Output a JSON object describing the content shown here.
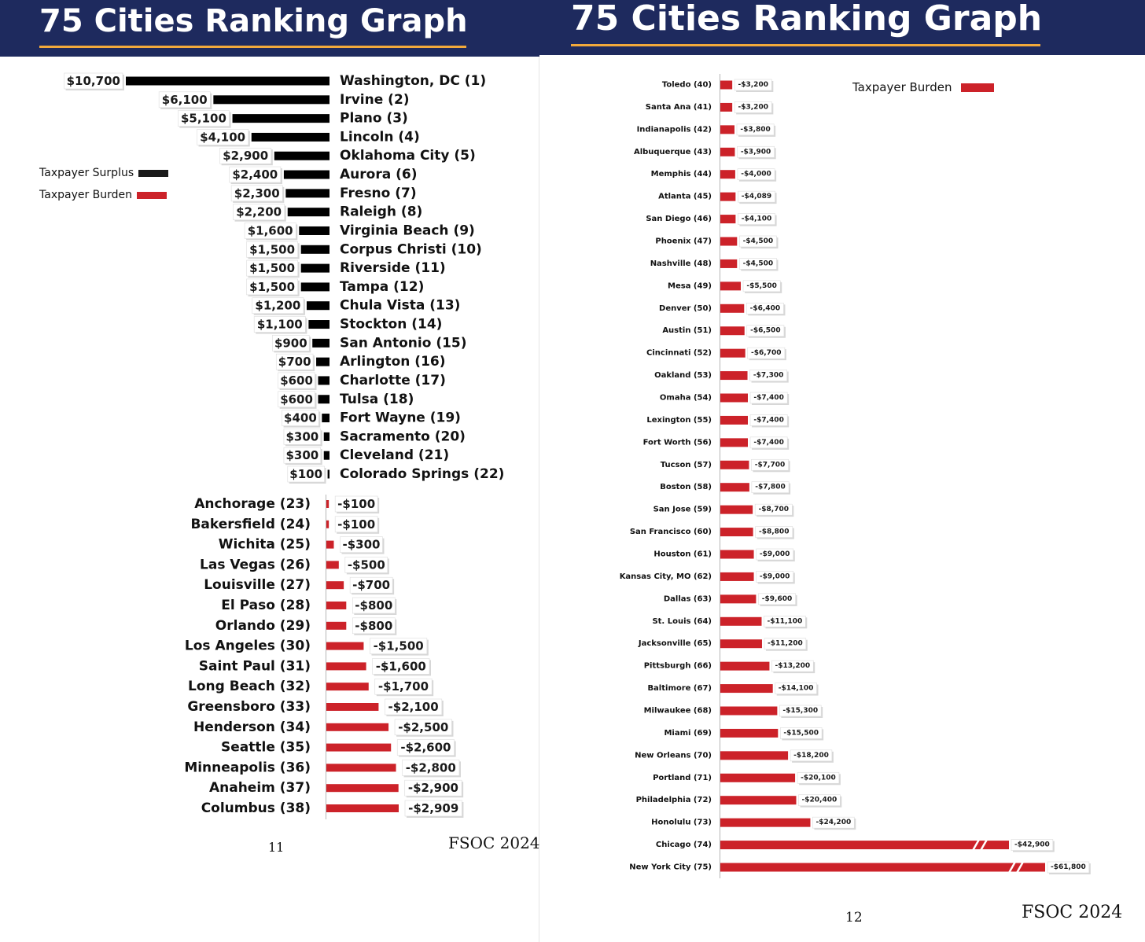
{
  "left_panel": {
    "title": "75 Cities Ranking Graph",
    "legend": {
      "surplus_label": "Taxpayer Surplus",
      "burden_label": "Taxpayer Burden"
    },
    "page_number": "11",
    "source": "FSOC 2024"
  },
  "right_panel": {
    "title": "75 Cities Ranking Graph",
    "legend": {
      "burden_label": "Taxpayer Burden"
    },
    "page_number": "12",
    "source": "FSOC 2024"
  },
  "colors": {
    "header_bg": "#1e2a5e",
    "accent": "#f2a93b",
    "surplus": "#000000",
    "burden": "#cc2229"
  },
  "chart_data": [
    {
      "type": "bar",
      "title": "75 Cities Ranking Graph",
      "orientation": "horizontal",
      "series": [
        {
          "name": "Taxpayer Surplus",
          "categories": [
            "Washington, DC (1)",
            "Irvine (2)",
            "Plano (3)",
            "Lincoln (4)",
            "Oklahoma City (5)",
            "Aurora (6)",
            "Fresno (7)",
            "Raleigh (8)",
            "Virginia Beach (9)",
            "Corpus Christi (10)",
            "Riverside (11)",
            "Tampa (12)",
            "Chula Vista (13)",
            "Stockton (14)",
            "San Antonio (15)",
            "Arlington (16)",
            "Charlotte (17)",
            "Tulsa (18)",
            "Fort Wayne (19)",
            "Sacramento (20)",
            "Cleveland (21)",
            "Colorado Springs (22)"
          ],
          "values": [
            10700,
            6100,
            5100,
            4100,
            2900,
            2400,
            2300,
            2200,
            1600,
            1500,
            1500,
            1500,
            1200,
            1100,
            900,
            700,
            600,
            600,
            400,
            300,
            300,
            100
          ],
          "labels": [
            "$10,700",
            "$6,100",
            "$5,100",
            "$4,100",
            "$2,900",
            "$2,400",
            "$2,300",
            "$2,200",
            "$1,600",
            "$1,500",
            "$1,500",
            "$1,500",
            "$1,200",
            "$1,100",
            "$900",
            "$700",
            "$600",
            "$600",
            "$400",
            "$300",
            "$300",
            "$100"
          ]
        },
        {
          "name": "Taxpayer Burden",
          "categories": [
            "Anchorage (23)",
            "Bakersfield (24)",
            "Wichita (25)",
            "Las Vegas (26)",
            "Louisville (27)",
            "El Paso (28)",
            "Orlando (29)",
            "Los Angeles (30)",
            "Saint Paul (31)",
            "Long Beach (32)",
            "Greensboro (33)",
            "Henderson (34)",
            "Seattle (35)",
            "Minneapolis (36)",
            "Anaheim (37)",
            "Columbus (38)"
          ],
          "values": [
            -100,
            -100,
            -300,
            -500,
            -700,
            -800,
            -800,
            -1500,
            -1600,
            -1700,
            -2100,
            -2500,
            -2600,
            -2800,
            -2900,
            -2909
          ],
          "labels": [
            "-$100",
            "-$100",
            "-$300",
            "-$500",
            "-$700",
            "-$800",
            "-$800",
            "-$1,500",
            "-$1,600",
            "-$1,700",
            "-$2,100",
            "-$2,500",
            "-$2,600",
            "-$2,800",
            "-$2,900",
            "-$2,909"
          ]
        }
      ]
    },
    {
      "type": "bar",
      "title": "75 Cities Ranking Graph",
      "orientation": "horizontal",
      "series": [
        {
          "name": "Taxpayer Burden",
          "categories": [
            "Toledo (40)",
            "Santa Ana (41)",
            "Indianapolis (42)",
            "Albuquerque (43)",
            "Memphis (44)",
            "Atlanta (45)",
            "San Diego (46)",
            "Phoenix (47)",
            "Nashville (48)",
            "Mesa (49)",
            "Denver (50)",
            "Austin (51)",
            "Cincinnati (52)",
            "Oakland (53)",
            "Omaha (54)",
            "Lexington (55)",
            "Fort Worth (56)",
            "Tucson (57)",
            "Boston (58)",
            "San Jose (59)",
            "San Francisco (60)",
            "Houston (61)",
            "Kansas City, MO (62)",
            "Dallas (63)",
            "St. Louis (64)",
            "Jacksonville (65)",
            "Pittsburgh (66)",
            "Baltimore (67)",
            "Milwaukee (68)",
            "Miami (69)",
            "New Orleans (70)",
            "Portland (71)",
            "Philadelphia (72)",
            "Honolulu (73)",
            "Chicago (74)",
            "New York City (75)"
          ],
          "values": [
            -3200,
            -3200,
            -3800,
            -3900,
            -4000,
            -4089,
            -4100,
            -4500,
            -4500,
            -5500,
            -6400,
            -6500,
            -6700,
            -7300,
            -7400,
            -7400,
            -7400,
            -7700,
            -7800,
            -8700,
            -8800,
            -9000,
            -9000,
            -9600,
            -11100,
            -11200,
            -13200,
            -14100,
            -15300,
            -15500,
            -18200,
            -20100,
            -20400,
            -24200,
            -42900,
            -61800
          ],
          "labels": [
            "-$3,200",
            "-$3,200",
            "-$3,800",
            "-$3,900",
            "-$4,000",
            "-$4,089",
            "-$4,100",
            "-$4,500",
            "-$4,500",
            "-$5,500",
            "-$6,400",
            "-$6,500",
            "-$6,700",
            "-$7,300",
            "-$7,400",
            "-$7,400",
            "-$7,400",
            "-$7,700",
            "-$7,800",
            "-$8,700",
            "-$8,800",
            "-$9,000",
            "-$9,000",
            "-$9,600",
            "-$11,100",
            "-$11,200",
            "-$13,200",
            "-$14,100",
            "-$15,300",
            "-$15,500",
            "-$18,200",
            "-$20,100",
            "-$20,400",
            "-$24,200",
            "-$42,900",
            "-$61,800"
          ],
          "axis_breaks": [
            "Chicago (74)",
            "New York City (75)"
          ]
        }
      ]
    }
  ]
}
